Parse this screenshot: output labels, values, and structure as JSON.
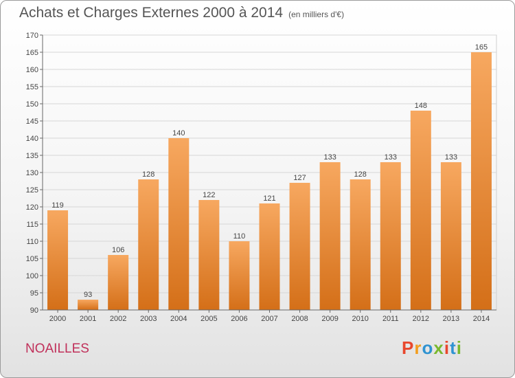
{
  "title": "Achats et Charges Externes 2000 à 2014",
  "unit": "(en milliers d'€)",
  "place": "NOAILLES",
  "logo": {
    "text": "Proxiti",
    "colors": [
      "#e8472d",
      "#f29d1e",
      "#2f93d1",
      "#79b82e",
      "#e8472d",
      "#2f93d1",
      "#79b82e"
    ]
  },
  "colors": {
    "bar": "#f0892e",
    "bar_light": "#f7a860",
    "bar_dark": "#d46f18"
  },
  "chart_data": {
    "type": "bar",
    "categories": [
      "2000",
      "2001",
      "2002",
      "2003",
      "2004",
      "2005",
      "2006",
      "2007",
      "2008",
      "2009",
      "2010",
      "2011",
      "2012",
      "2013",
      "2014"
    ],
    "values": [
      119,
      93,
      106,
      128,
      140,
      122,
      110,
      121,
      127,
      133,
      128,
      133,
      148,
      133,
      165
    ],
    "title": "Achats et Charges Externes 2000 à 2014",
    "ylim": [
      90,
      170
    ],
    "yticks": [
      90,
      95,
      100,
      105,
      110,
      115,
      120,
      125,
      130,
      135,
      140,
      145,
      150,
      155,
      160,
      165,
      170
    ],
    "grid": true,
    "legend": "none"
  }
}
